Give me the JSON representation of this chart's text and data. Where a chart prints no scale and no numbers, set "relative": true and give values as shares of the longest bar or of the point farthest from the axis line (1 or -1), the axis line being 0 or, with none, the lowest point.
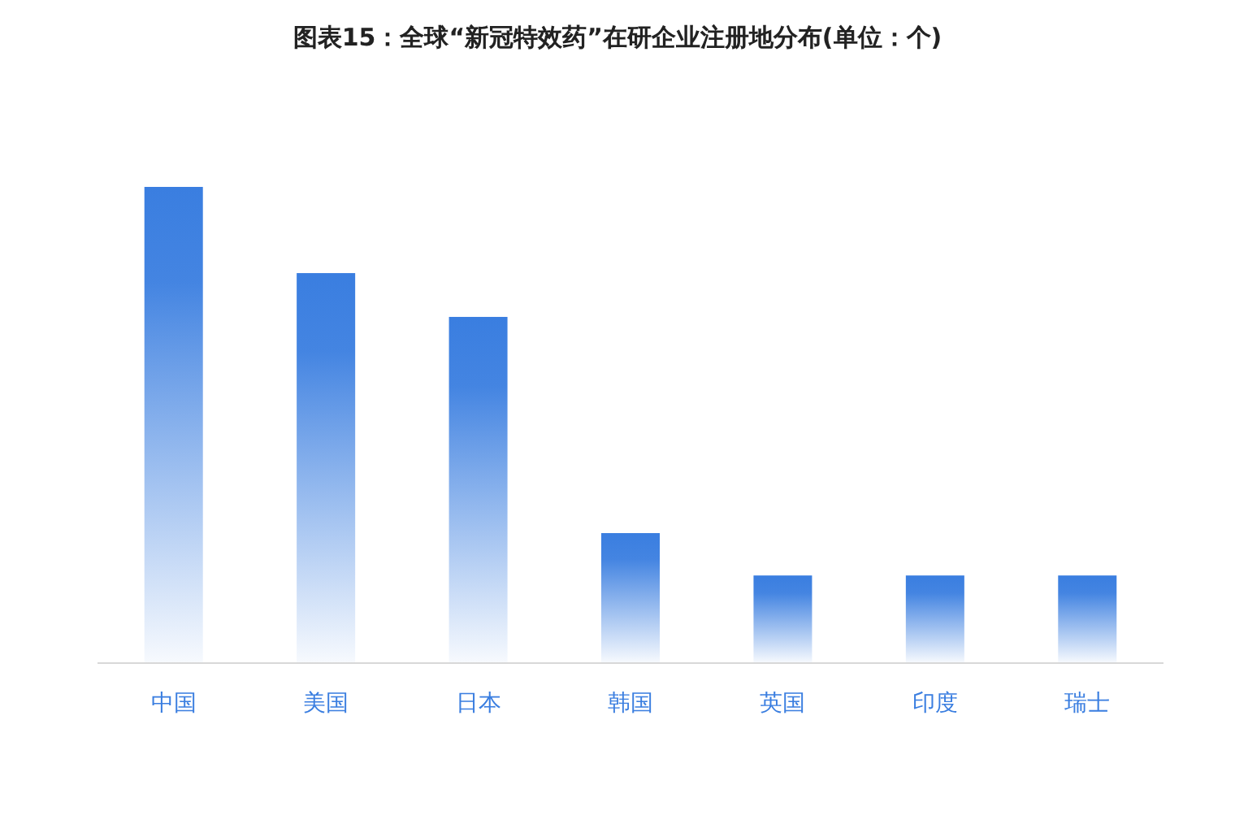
{
  "chart_data": {
    "type": "bar",
    "title": "图表15：全球“新冠特效药”在研企业注册地分布(单位：个)",
    "categories": [
      "中国",
      "美国",
      "日本",
      "韩国",
      "英国",
      "印度",
      "瑞士"
    ],
    "values": [
      1,
      0.819,
      0.727,
      0.273,
      0.184,
      0.184,
      0.184
    ],
    "color": "#3a7ee0",
    "relative": true
  }
}
